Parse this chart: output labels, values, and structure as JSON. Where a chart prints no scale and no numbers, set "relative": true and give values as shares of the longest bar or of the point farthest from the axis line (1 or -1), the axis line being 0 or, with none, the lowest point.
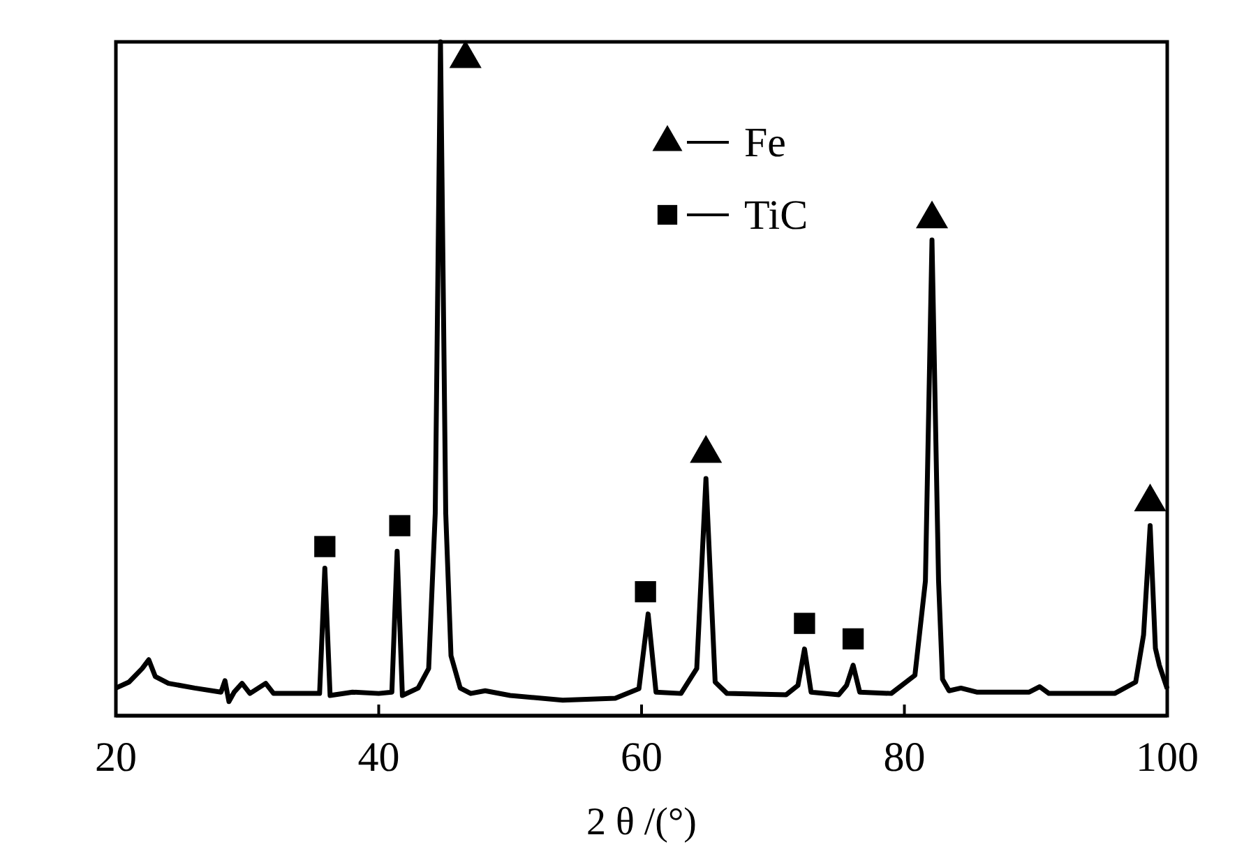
{
  "chart_data": {
    "type": "line",
    "relative": true,
    "xlabel": "2 θ /(°)",
    "xlim": [
      20,
      100
    ],
    "xticks": [
      20,
      40,
      60,
      80,
      100
    ],
    "legend": "top right",
    "grid": false,
    "series": [
      {
        "color": "#000000",
        "marker": "none",
        "x": [
          20,
          21,
          22,
          22.5,
          23,
          24,
          26,
          28,
          28.3,
          28.6,
          29,
          29.6,
          30.2,
          31.4,
          32,
          35.5,
          35.9,
          36.3,
          38,
          40,
          41,
          41.4,
          41.8,
          43,
          43.8,
          44.3,
          44.7,
          45.1,
          45.5,
          46.2,
          47,
          48.1,
          50,
          54,
          58,
          59.8,
          60.5,
          61.1,
          63,
          64.2,
          64.9,
          65.6,
          66.5,
          71,
          71.9,
          72.4,
          72.9,
          75,
          75.6,
          76.1,
          76.6,
          79,
          80.8,
          81.6,
          82.1,
          82.6,
          82.9,
          83.4,
          84.3,
          85.5,
          89.5,
          90.3,
          91,
          96,
          97.6,
          98.2,
          98.7,
          99.1,
          99.4,
          100
        ],
        "values": [
          0.041,
          0.05,
          0.07,
          0.083,
          0.058,
          0.048,
          0.041,
          0.035,
          0.052,
          0.021,
          0.035,
          0.048,
          0.033,
          0.048,
          0.033,
          0.033,
          0.219,
          0.03,
          0.035,
          0.033,
          0.035,
          0.244,
          0.03,
          0.041,
          0.07,
          0.3,
          1,
          0.3,
          0.089,
          0.041,
          0.033,
          0.037,
          0.03,
          0.023,
          0.026,
          0.04,
          0.151,
          0.035,
          0.033,
          0.07,
          0.352,
          0.05,
          0.033,
          0.031,
          0.045,
          0.099,
          0.035,
          0.031,
          0.045,
          0.075,
          0.035,
          0.033,
          0.06,
          0.2,
          0.706,
          0.2,
          0.054,
          0.037,
          0.041,
          0.035,
          0.035,
          0.043,
          0.033,
          0.033,
          0.05,
          0.12,
          0.282,
          0.1,
          0.075,
          0.04
        ]
      },
      {
        "type": "scatter",
        "name": "Fe",
        "color": "#000000",
        "marker": "triangle",
        "x": [
          46.6,
          64.9,
          82.1,
          98.7
        ],
        "values": [
          0.975,
          0.389,
          0.737,
          0.317
        ]
      },
      {
        "type": "scatter",
        "name": "TiC",
        "color": "#000000",
        "marker": "square",
        "x": [
          35.9,
          41.6,
          60.3,
          72.4,
          76.1
        ],
        "values": [
          0.251,
          0.282,
          0.184,
          0.137,
          0.114
        ]
      }
    ]
  }
}
